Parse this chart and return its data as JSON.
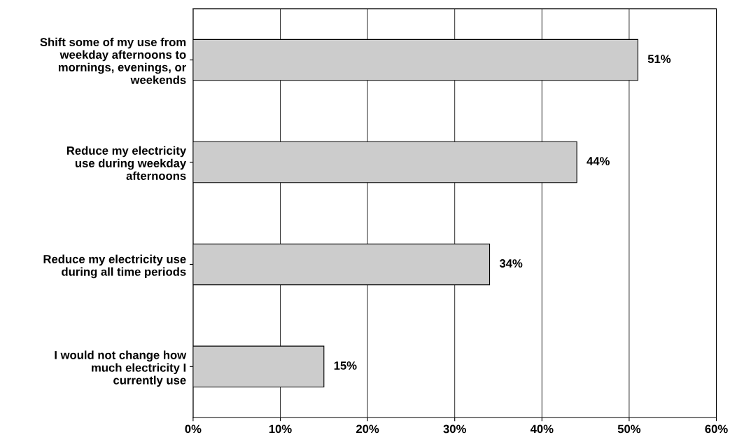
{
  "chart_data": {
    "type": "bar",
    "orientation": "horizontal",
    "categories": [
      "Shift some of my use from\nweekday afternoons to\nmornings, evenings, or\nweekends",
      "Reduce my electricity\nuse during weekday\nafternoons",
      "Reduce my electricity use\nduring all time periods",
      "I would not change how\nmuch electricity I\ncurrently use"
    ],
    "values": [
      51,
      44,
      34,
      15
    ],
    "value_labels": [
      "51%",
      "44%",
      "34%",
      "15%"
    ],
    "color": "#cccccc",
    "xlim": [
      0,
      60
    ],
    "xticks": [
      {
        "value": 0,
        "label": "0%"
      },
      {
        "value": 10,
        "label": "10%"
      },
      {
        "value": 20,
        "label": "20%"
      },
      {
        "value": 30,
        "label": "30%"
      },
      {
        "value": 40,
        "label": "40%"
      },
      {
        "value": 50,
        "label": "50%"
      },
      {
        "value": 60,
        "label": "60%"
      }
    ],
    "grid": "x"
  }
}
